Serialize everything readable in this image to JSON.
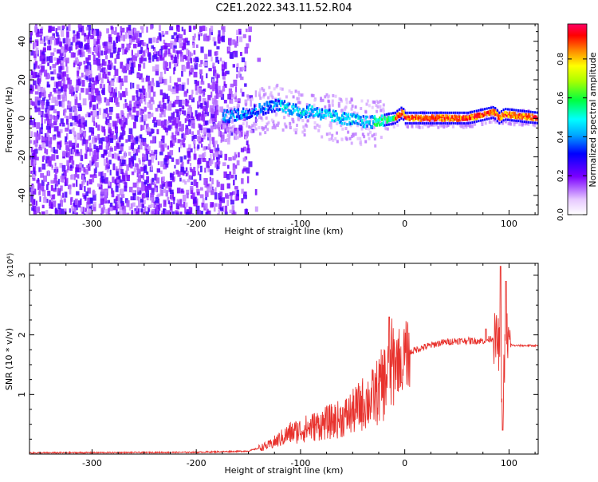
{
  "title": "C2E1.2022.343.11.52.R04",
  "chart_data": [
    {
      "type": "heatmap",
      "xlabel": "Height of straight line (km)",
      "ylabel": "Frequency (Hz)",
      "xlim": [
        -360,
        128
      ],
      "ylim": [
        -50,
        49
      ],
      "xticks": [
        -300,
        -200,
        -100,
        0,
        100
      ],
      "yticks": [
        -40,
        -20,
        0,
        20,
        40
      ],
      "colorbar": {
        "label": "Normalized spectral amplitude",
        "range": [
          0.0,
          0.98
        ],
        "ticks": [
          0.0,
          0.2,
          0.4,
          0.6,
          0.8
        ]
      },
      "ridge": {
        "x": [
          -170,
          -150,
          -130,
          -120,
          -110,
          -100,
          -90,
          -80,
          -70,
          -60,
          -50,
          -40,
          -30,
          -20,
          -10,
          -3,
          0,
          10,
          30,
          60,
          85,
          90,
          95,
          128
        ],
        "y": [
          1,
          3,
          6,
          7,
          5,
          3,
          4,
          2,
          1,
          0,
          -1,
          -2,
          -2,
          -1,
          0,
          3,
          0,
          0,
          0,
          0,
          3,
          0,
          2,
          0
        ]
      }
    },
    {
      "type": "line",
      "xlabel": "Height of straight line (km)",
      "ylabel": "SNR (10 * v/v)",
      "multiplier": "(x10⁴)",
      "xlim": [
        -360,
        128
      ],
      "ylim": [
        0,
        3.2
      ],
      "xticks": [
        -300,
        -200,
        -100,
        0,
        100
      ],
      "yticks": [
        1,
        2,
        3
      ],
      "color": "#e8322d",
      "envelope": {
        "x": [
          -360,
          -200,
          -150,
          -130,
          -120,
          -110,
          -100,
          -90,
          -80,
          -70,
          -60,
          -50,
          -40,
          -30,
          -20,
          -15,
          -10,
          -5,
          0,
          10,
          20,
          30,
          40,
          50,
          60,
          75,
          80,
          85,
          88,
          90,
          92,
          94,
          96,
          98,
          100,
          105,
          110,
          128
        ],
        "y": [
          0.02,
          0.03,
          0.05,
          0.15,
          0.25,
          0.35,
          0.4,
          0.45,
          0.5,
          0.55,
          0.6,
          0.7,
          0.85,
          0.95,
          1.2,
          1.4,
          1.55,
          1.6,
          1.65,
          1.75,
          1.8,
          1.85,
          1.88,
          1.9,
          1.9,
          1.9,
          1.92,
          1.95,
          1.9,
          1.85,
          1.5,
          1.0,
          1.6,
          2.0,
          1.85,
          1.82,
          1.82,
          1.82
        ]
      },
      "spikes": [
        {
          "x": -15,
          "y": 2.3
        },
        {
          "x": -3,
          "y": 1.2
        },
        {
          "x": 60,
          "y": 1.9
        },
        {
          "x": 78,
          "y": 2.1
        },
        {
          "x": 92,
          "y": 3.15
        },
        {
          "x": 94,
          "y": 0.4
        },
        {
          "x": 97,
          "y": 2.9
        }
      ]
    }
  ]
}
